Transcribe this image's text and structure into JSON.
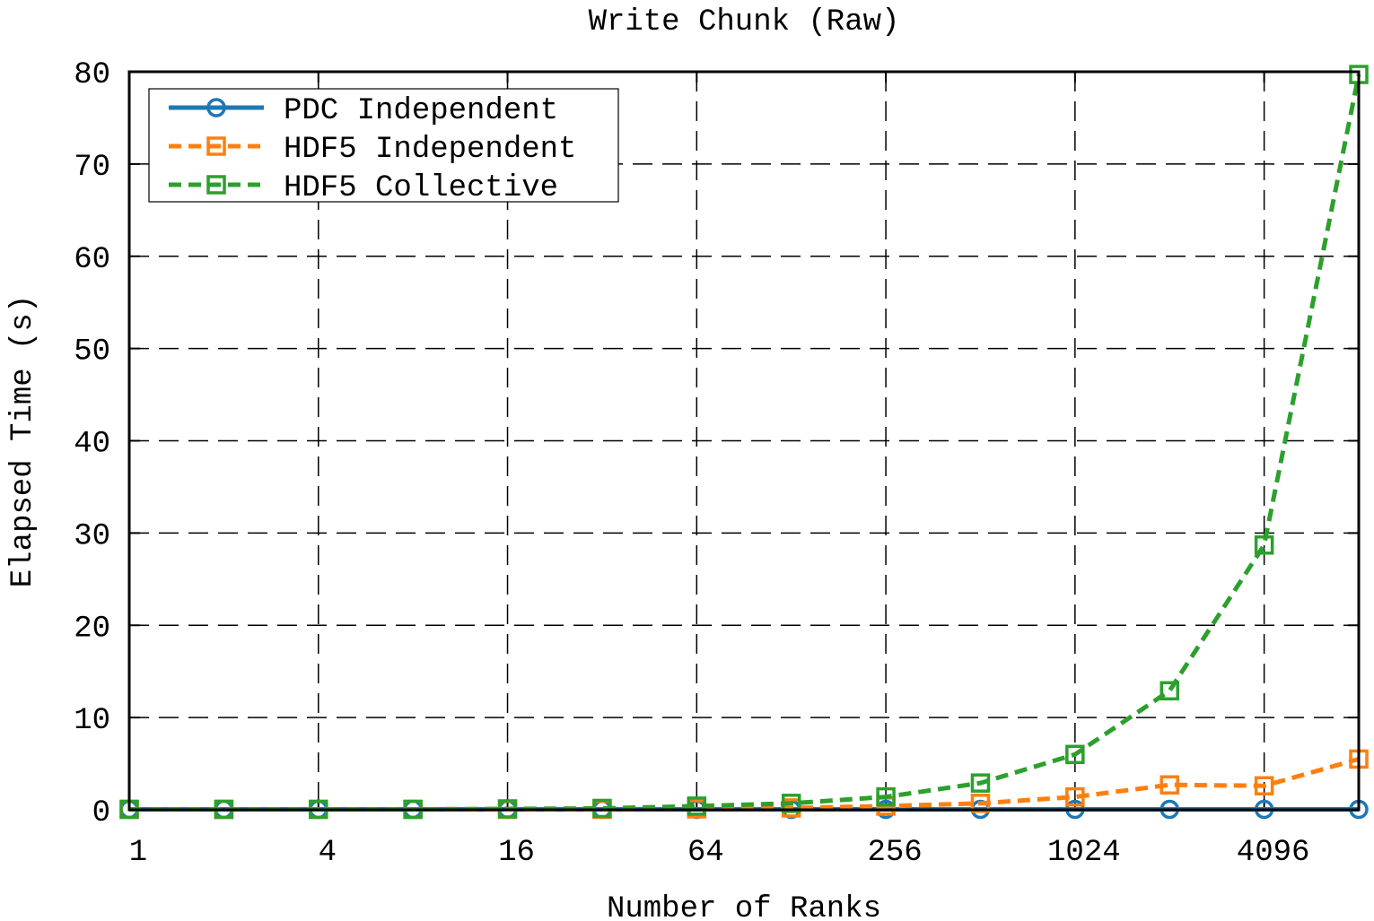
{
  "chart_data": {
    "type": "line",
    "title": "Write Chunk (Raw)",
    "xlabel": "Number of Ranks",
    "ylabel": "Elapsed Time (s)",
    "x_scale": "log2",
    "x": [
      1,
      2,
      4,
      8,
      16,
      32,
      64,
      128,
      256,
      512,
      1024,
      2048,
      4096,
      8192
    ],
    "x_ticks": [
      1,
      4,
      16,
      64,
      256,
      1024,
      4096
    ],
    "x_tick_labels": [
      "1",
      "4",
      "16",
      "64",
      "256",
      "1024",
      "4096"
    ],
    "xlim": [
      1,
      8192
    ],
    "ylim": [
      0,
      80
    ],
    "y_ticks": [
      0,
      10,
      20,
      30,
      40,
      50,
      60,
      70,
      80
    ],
    "y_tick_labels": [
      "0",
      "10",
      "20",
      "30",
      "40",
      "50",
      "60",
      "70",
      "80"
    ],
    "grid": true,
    "legend_position": "top-left",
    "series": [
      {
        "name": "PDC Independent",
        "color": "#1f77b4",
        "marker": "circle",
        "line": "solid",
        "values": [
          0.05,
          0.05,
          0.05,
          0.05,
          0.05,
          0.05,
          0.05,
          0.05,
          0.05,
          0.05,
          0.05,
          0.05,
          0.05,
          0.05
        ]
      },
      {
        "name": "HDF5 Independent",
        "color": "#ff7f0e",
        "marker": "square",
        "line": "dashed",
        "values": [
          0.05,
          0.05,
          0.05,
          0.05,
          0.05,
          0.05,
          0.1,
          0.2,
          0.4,
          0.7,
          1.4,
          2.7,
          2.6,
          5.5
        ]
      },
      {
        "name": "HDF5 Collective",
        "color": "#2ca02c",
        "marker": "square",
        "line": "dashed",
        "values": [
          0.05,
          0.05,
          0.05,
          0.05,
          0.1,
          0.15,
          0.4,
          0.7,
          1.4,
          2.9,
          6.0,
          12.9,
          28.7,
          79.7
        ]
      }
    ]
  }
}
